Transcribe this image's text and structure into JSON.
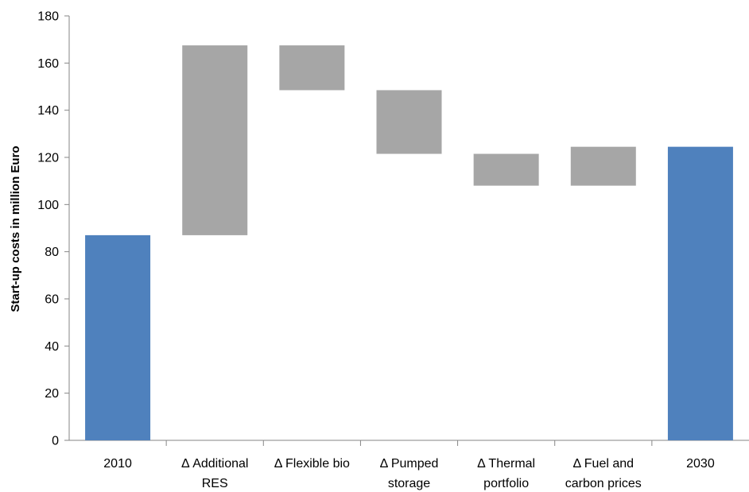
{
  "chart_data": {
    "type": "bar",
    "subtype": "waterfall",
    "title": "",
    "ylabel": "Start-up costs in million Euro",
    "xlabel": "",
    "ylim": [
      0,
      180
    ],
    "yticks": [
      "0",
      "20",
      "40",
      "60",
      "80",
      "100",
      "120",
      "140",
      "160",
      "180"
    ],
    "grid": false,
    "legend": "none",
    "colors": {
      "total": "#4f81bd",
      "delta": "#a6a6a6",
      "axis": "#868686"
    },
    "categories": [
      [
        "2010"
      ],
      [
        "Δ Additional",
        "RES"
      ],
      [
        "Δ Flexible bio"
      ],
      [
        "Δ Pumped",
        "storage"
      ],
      [
        "Δ Thermal",
        "portfolio"
      ],
      [
        "Δ Fuel and",
        "carbon prices"
      ],
      [
        "2030"
      ]
    ],
    "bars": [
      {
        "kind": "total",
        "low": 0,
        "high": 87
      },
      {
        "kind": "delta",
        "low": 87,
        "high": 167.5
      },
      {
        "kind": "delta",
        "low": 148.5,
        "high": 167.5
      },
      {
        "kind": "delta",
        "low": 121.5,
        "high": 148.5
      },
      {
        "kind": "delta",
        "low": 108,
        "high": 121.5
      },
      {
        "kind": "delta",
        "low": 108,
        "high": 124.5
      },
      {
        "kind": "total",
        "low": 0,
        "high": 124.5
      }
    ]
  }
}
